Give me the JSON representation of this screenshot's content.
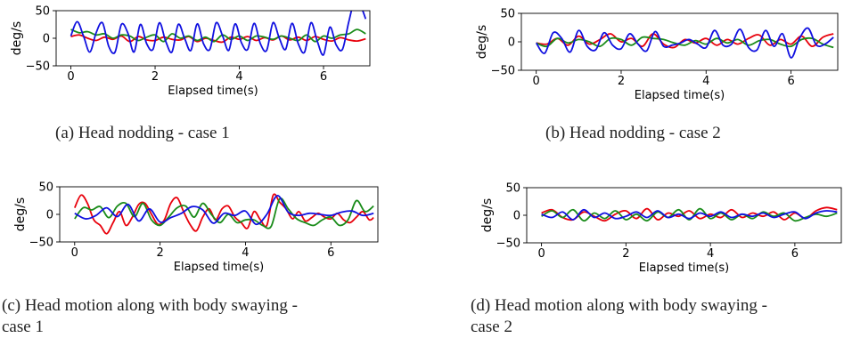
{
  "colors": {
    "red": "#e8000b",
    "green": "#1a8c1a",
    "blue": "#1010e0"
  },
  "chart_data": [
    {
      "id": "a",
      "type": "line",
      "caption": "(a) Head nodding - case 1",
      "xlabel": "Elapsed time(s)",
      "ylabel": "deg/s",
      "xlim": [
        -0.35,
        7.1
      ],
      "ylim": [
        -50,
        50
      ],
      "xticks": [
        0,
        2,
        4,
        6
      ],
      "yticks": [
        -50,
        0,
        50
      ],
      "xticklabels": [
        "0",
        "2",
        "4",
        "6"
      ],
      "yticklabels": [
        "−50",
        "0",
        "50"
      ],
      "series": [
        {
          "color": "red",
          "x": [
            0,
            0.2,
            0.4,
            0.6,
            0.8,
            1,
            1.2,
            1.4,
            1.6,
            1.8,
            2,
            2.2,
            2.4,
            2.6,
            2.8,
            3,
            3.2,
            3.4,
            3.6,
            3.8,
            4,
            4.2,
            4.4,
            4.6,
            4.8,
            5,
            5.2,
            5.4,
            5.6,
            5.8,
            6,
            6.2,
            6.4,
            6.6,
            6.8,
            7
          ],
          "y": [
            3,
            6,
            0,
            -4,
            2,
            -2,
            4,
            -6,
            3,
            -3,
            -4,
            2,
            -2,
            -3,
            3,
            -6,
            0,
            -4,
            -7,
            2,
            -2,
            3,
            -4,
            1,
            -3,
            4,
            -3,
            2,
            -4,
            3,
            -2,
            -5,
            1,
            -3,
            -5,
            -1
          ]
        },
        {
          "color": "green",
          "x": [
            0,
            0.2,
            0.4,
            0.6,
            0.8,
            1,
            1.2,
            1.4,
            1.6,
            1.8,
            2,
            2.2,
            2.4,
            2.6,
            2.8,
            3,
            3.2,
            3.4,
            3.6,
            3.8,
            4,
            4.2,
            4.4,
            4.6,
            4.8,
            5,
            5.2,
            5.4,
            5.6,
            5.8,
            6,
            6.2,
            6.4,
            6.6,
            6.8,
            7
          ],
          "y": [
            16,
            10,
            12,
            6,
            8,
            0,
            6,
            4,
            -4,
            2,
            6,
            -6,
            8,
            0,
            4,
            -4,
            2,
            -6,
            6,
            -2,
            4,
            -4,
            4,
            2,
            -2,
            4,
            0,
            -4,
            6,
            -6,
            4,
            0,
            6,
            8,
            16,
            8
          ]
        },
        {
          "color": "blue",
          "x": [
            0,
            0.15,
            0.3,
            0.45,
            0.6,
            0.75,
            0.9,
            1.05,
            1.2,
            1.35,
            1.5,
            1.65,
            1.8,
            1.95,
            2.1,
            2.25,
            2.4,
            2.55,
            2.7,
            2.85,
            3,
            3.15,
            3.3,
            3.45,
            3.6,
            3.75,
            3.9,
            4.05,
            4.2,
            4.35,
            4.5,
            4.65,
            4.8,
            4.95,
            5.1,
            5.25,
            5.4,
            5.55,
            5.7,
            5.85,
            6,
            6.15,
            6.3,
            6.45,
            6.6,
            6.75,
            6.9,
            7
          ],
          "y": [
            4,
            30,
            4,
            -25,
            10,
            28,
            -15,
            -25,
            25,
            10,
            -25,
            25,
            -10,
            -20,
            28,
            -5,
            -25,
            25,
            0,
            -22,
            26,
            -10,
            -20,
            28,
            5,
            -22,
            26,
            -8,
            -20,
            27,
            -10,
            -22,
            28,
            0,
            -20,
            27,
            -10,
            -25,
            28,
            -5,
            -30,
            20,
            -12,
            -20,
            30,
            70,
            55,
            35
          ]
        }
      ]
    },
    {
      "id": "b",
      "type": "line",
      "caption": "(b) Head nodding - case 2",
      "xlabel": "Elapsed time(s)",
      "ylabel": "deg/s",
      "xlim": [
        -0.35,
        7.1
      ],
      "ylim": [
        -50,
        50
      ],
      "xticks": [
        0,
        2,
        4,
        6
      ],
      "yticks": [
        -50,
        0,
        50
      ],
      "xticklabels": [
        "0",
        "2",
        "4",
        "6"
      ],
      "yticklabels": [
        "−50",
        "0",
        "50"
      ],
      "series": [
        {
          "color": "red",
          "x": [
            0,
            0.25,
            0.5,
            0.75,
            1,
            1.25,
            1.5,
            1.75,
            2,
            2.25,
            2.5,
            2.75,
            3,
            3.25,
            3.5,
            3.75,
            4,
            4.25,
            4.5,
            4.75,
            5,
            5.25,
            5.5,
            5.75,
            6,
            6.25,
            6.5,
            6.75,
            7
          ],
          "y": [
            -2,
            -4,
            6,
            -6,
            10,
            -4,
            4,
            14,
            0,
            6,
            -8,
            14,
            -4,
            -10,
            4,
            -2,
            6,
            -6,
            4,
            -4,
            6,
            12,
            -6,
            4,
            -4,
            10,
            -8,
            8,
            14
          ]
        },
        {
          "color": "green",
          "x": [
            0,
            0.25,
            0.5,
            0.75,
            1,
            1.25,
            1.5,
            1.75,
            2,
            2.25,
            2.5,
            2.75,
            3,
            3.25,
            3.5,
            3.75,
            4,
            4.25,
            4.5,
            4.75,
            5,
            5.25,
            5.5,
            5.75,
            6,
            6.25,
            6.5,
            6.75,
            7
          ],
          "y": [
            -2,
            -8,
            6,
            -2,
            4,
            0,
            -8,
            6,
            4,
            -6,
            8,
            6,
            4,
            -2,
            -6,
            2,
            -4,
            6,
            -2,
            4,
            -6,
            2,
            4,
            -4,
            -8,
            4,
            6,
            -4,
            -10
          ]
        },
        {
          "color": "blue",
          "x": [
            0,
            0.2,
            0.4,
            0.6,
            0.8,
            1,
            1.2,
            1.4,
            1.6,
            1.8,
            2,
            2.2,
            2.4,
            2.6,
            2.8,
            3,
            3.2,
            3.4,
            3.6,
            3.8,
            4,
            4.2,
            4.4,
            4.6,
            4.8,
            5,
            5.2,
            5.4,
            5.6,
            5.8,
            6,
            6.2,
            6.4,
            6.6,
            6.8,
            7
          ],
          "y": [
            -2,
            -20,
            16,
            6,
            -18,
            20,
            -8,
            -14,
            16,
            -6,
            -12,
            14,
            -4,
            -16,
            18,
            -8,
            -6,
            -2,
            4,
            -4,
            -10,
            20,
            -6,
            -4,
            22,
            -10,
            -14,
            20,
            -8,
            14,
            -28,
            6,
            24,
            -6,
            -4,
            8
          ]
        }
      ]
    },
    {
      "id": "c",
      "type": "line",
      "caption": "(c) Head motion along with body swaying -",
      "caption2": "case 1",
      "xlabel": "Elapsed time(s)",
      "ylabel": "deg/s",
      "xlim": [
        -0.35,
        7.1
      ],
      "ylim": [
        -50,
        50
      ],
      "xticks": [
        0,
        2,
        4,
        6
      ],
      "yticks": [
        -50,
        0,
        50
      ],
      "xticklabels": [
        "0",
        "2",
        "4",
        "6"
      ],
      "yticklabels": [
        "−50",
        "0",
        "50"
      ],
      "series": [
        {
          "color": "red",
          "x": [
            0,
            0.15,
            0.3,
            0.45,
            0.6,
            0.75,
            0.9,
            1.05,
            1.2,
            1.35,
            1.5,
            1.65,
            1.8,
            1.95,
            2.1,
            2.25,
            2.4,
            2.55,
            2.7,
            2.85,
            3,
            3.15,
            3.3,
            3.45,
            3.6,
            3.75,
            3.9,
            4.05,
            4.2,
            4.35,
            4.5,
            4.65,
            4.8,
            4.95,
            5.1,
            5.25,
            5.4,
            5.55,
            5.7,
            5.85,
            6,
            6.15,
            6.3,
            6.45,
            6.6,
            6.75,
            6.9,
            7
          ],
          "y": [
            12,
            35,
            20,
            -10,
            -20,
            -35,
            -15,
            5,
            -20,
            -5,
            18,
            20,
            0,
            -18,
            -10,
            20,
            30,
            5,
            -18,
            -30,
            -5,
            10,
            -10,
            10,
            15,
            -5,
            -15,
            -25,
            5,
            -10,
            -20,
            35,
            22,
            10,
            -8,
            5,
            -12,
            -6,
            2,
            -5,
            -8,
            2,
            -10,
            -15,
            -5,
            5,
            -10,
            -6
          ]
        },
        {
          "color": "green",
          "x": [
            0,
            0.2,
            0.4,
            0.6,
            0.8,
            1,
            1.2,
            1.4,
            1.6,
            1.8,
            2,
            2.2,
            2.4,
            2.6,
            2.8,
            3,
            3.2,
            3.4,
            3.6,
            3.8,
            4,
            4.2,
            4.4,
            4.6,
            4.8,
            5,
            5.2,
            5.4,
            5.6,
            5.8,
            6,
            6.2,
            6.4,
            6.6,
            6.8,
            7
          ],
          "y": [
            -8,
            12,
            8,
            14,
            -6,
            15,
            20,
            -4,
            20,
            -10,
            -20,
            -5,
            12,
            15,
            -5,
            20,
            0,
            -15,
            0,
            -15,
            -10,
            -10,
            -20,
            -22,
            28,
            10,
            -8,
            -15,
            -20,
            -10,
            -5,
            -20,
            -10,
            25,
            5,
            15
          ]
        },
        {
          "color": "blue",
          "x": [
            0,
            0.25,
            0.5,
            0.75,
            1,
            1.25,
            1.5,
            1.75,
            2,
            2.25,
            2.5,
            2.75,
            3,
            3.25,
            3.5,
            3.75,
            4,
            4.25,
            4.5,
            4.75,
            5,
            5.25,
            5.5,
            5.75,
            6,
            6.25,
            6.5,
            6.75,
            7
          ],
          "y": [
            2,
            -8,
            -2,
            12,
            -4,
            18,
            -12,
            10,
            -14,
            -6,
            2,
            14,
            8,
            -16,
            2,
            -2,
            6,
            -18,
            0,
            34,
            4,
            -2,
            2,
            0,
            -2,
            4,
            6,
            -2,
            2
          ]
        }
      ]
    },
    {
      "id": "d",
      "type": "line",
      "caption": "(d) Head motion along with body swaying -",
      "caption2": "case 2",
      "xlabel": "Elapsed time(s)",
      "ylabel": "deg/s",
      "xlim": [
        -0.35,
        7.1
      ],
      "ylim": [
        -50,
        50
      ],
      "xticks": [
        0,
        2,
        4,
        6
      ],
      "yticks": [
        -50,
        0,
        50
      ],
      "xticklabels": [
        "0",
        "2",
        "4",
        "6"
      ],
      "yticklabels": [
        "−50",
        "0",
        "50"
      ],
      "series": [
        {
          "color": "red",
          "x": [
            0,
            0.25,
            0.5,
            0.75,
            1,
            1.25,
            1.5,
            1.75,
            2,
            2.25,
            2.5,
            2.75,
            3,
            3.25,
            3.5,
            3.75,
            4,
            4.25,
            4.5,
            4.75,
            5,
            5.25,
            5.5,
            5.75,
            6,
            6.25,
            6.5,
            6.75,
            7
          ],
          "y": [
            4,
            10,
            -4,
            -8,
            6,
            -2,
            -10,
            2,
            8,
            -6,
            12,
            -8,
            4,
            -2,
            8,
            -6,
            2,
            -4,
            10,
            -4,
            4,
            -2,
            6,
            -8,
            4,
            -6,
            8,
            14,
            10
          ]
        },
        {
          "color": "green",
          "x": [
            0,
            0.25,
            0.5,
            0.75,
            1,
            1.25,
            1.5,
            1.75,
            2,
            2.25,
            2.5,
            2.75,
            3,
            3.25,
            3.5,
            3.75,
            4,
            4.25,
            4.5,
            4.75,
            5,
            5.25,
            5.5,
            5.75,
            6,
            6.25,
            6.5,
            6.75,
            7
          ],
          "y": [
            -2,
            8,
            -4,
            10,
            -10,
            4,
            -6,
            8,
            -8,
            2,
            -10,
            6,
            -4,
            10,
            -8,
            12,
            -6,
            4,
            -8,
            2,
            -6,
            6,
            -2,
            4,
            -10,
            -4,
            2,
            -2,
            4
          ]
        },
        {
          "color": "blue",
          "x": [
            0,
            0.25,
            0.5,
            0.75,
            1,
            1.25,
            1.5,
            1.75,
            2,
            2.25,
            2.5,
            2.75,
            3,
            3.25,
            3.5,
            3.75,
            4,
            4.25,
            4.5,
            4.75,
            5,
            5.25,
            5.5,
            5.75,
            6,
            6.25,
            6.5,
            6.75,
            7
          ],
          "y": [
            2,
            -4,
            6,
            -8,
            10,
            -4,
            4,
            -6,
            -2,
            6,
            -4,
            8,
            -4,
            2,
            -6,
            4,
            -2,
            6,
            -4,
            2,
            -2,
            4,
            -4,
            2,
            6,
            -6,
            4,
            8,
            6
          ]
        }
      ]
    }
  ]
}
